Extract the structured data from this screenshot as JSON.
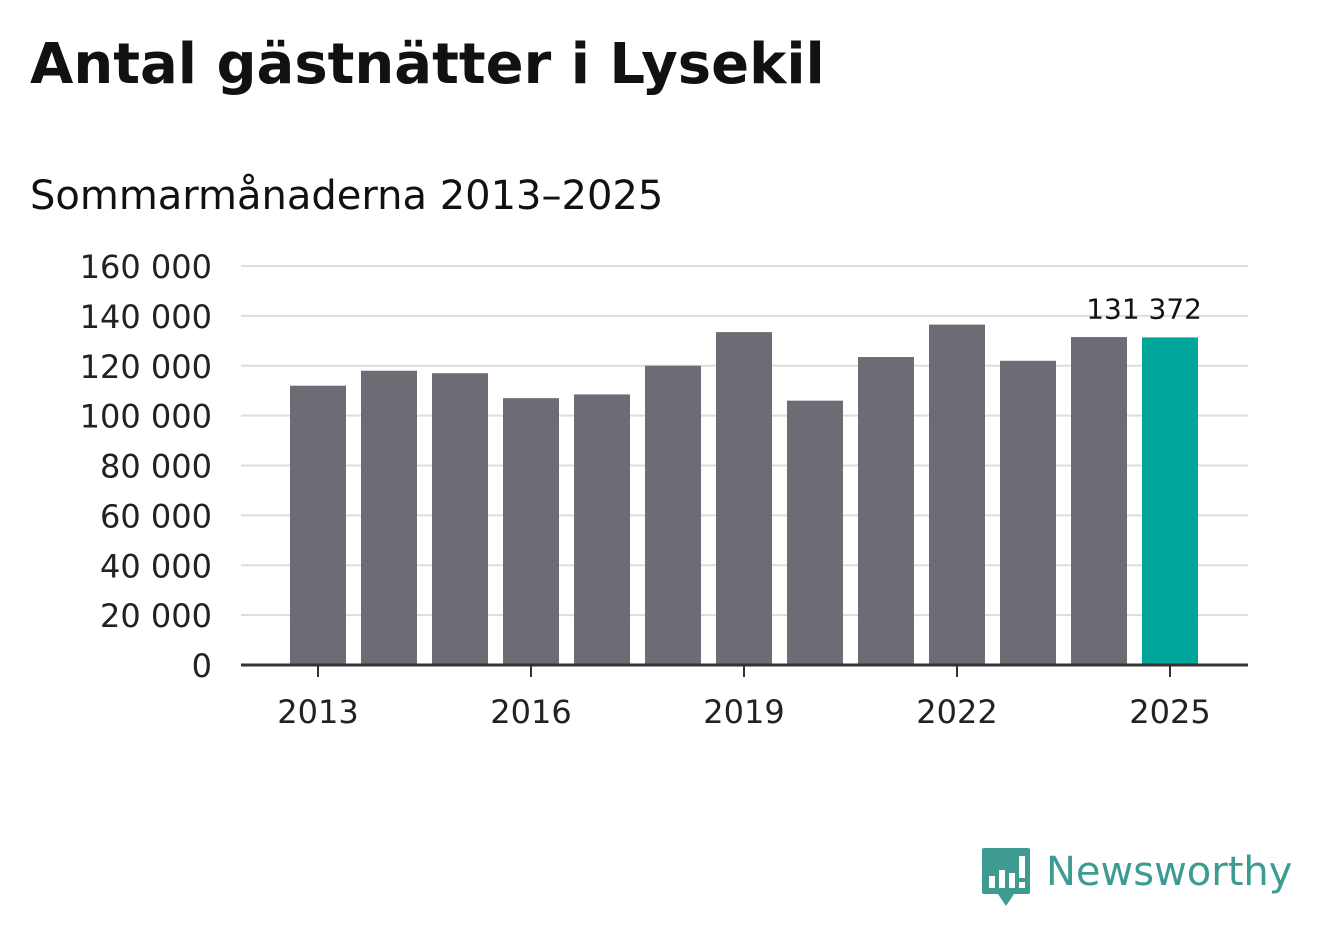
{
  "title": "Antal gästnätter i Lysekil",
  "subtitle": "Sommarmånaderna 2013–2025",
  "brand": {
    "name": "Newsworthy",
    "color": "#3d9b91",
    "icon": "newsworthy-logo-icon"
  },
  "colors": {
    "bar": "#6d6c74",
    "highlight": "#00a699",
    "grid": "#dddddd",
    "axis": "#333333"
  },
  "chart_data": {
    "type": "bar",
    "title": "Antal gästnätter i Lysekil",
    "subtitle": "Sommarmånaderna 2013–2025",
    "xlabel": "",
    "ylabel": "",
    "categories": [
      "2013",
      "2014",
      "2015",
      "2016",
      "2017",
      "2018",
      "2019",
      "2020",
      "2021",
      "2022",
      "2023",
      "2024",
      "2025"
    ],
    "values": [
      112000,
      118000,
      117000,
      107000,
      108500,
      120000,
      133500,
      106000,
      123500,
      136500,
      122000,
      131500,
      131372
    ],
    "highlight_index": 12,
    "data_labels": [
      {
        "index": 12,
        "text": "131 372"
      }
    ],
    "x_tick_labels": [
      "2013",
      "2016",
      "2019",
      "2022",
      "2025"
    ],
    "y_ticks": [
      0,
      20000,
      40000,
      60000,
      80000,
      100000,
      120000,
      140000,
      160000
    ],
    "y_tick_labels": [
      "0",
      "20 000",
      "40 000",
      "60 000",
      "80 000",
      "100 000",
      "120 000",
      "140 000",
      "160 000"
    ],
    "ylim": [
      0,
      160000
    ],
    "grid": true,
    "legend": "none"
  }
}
